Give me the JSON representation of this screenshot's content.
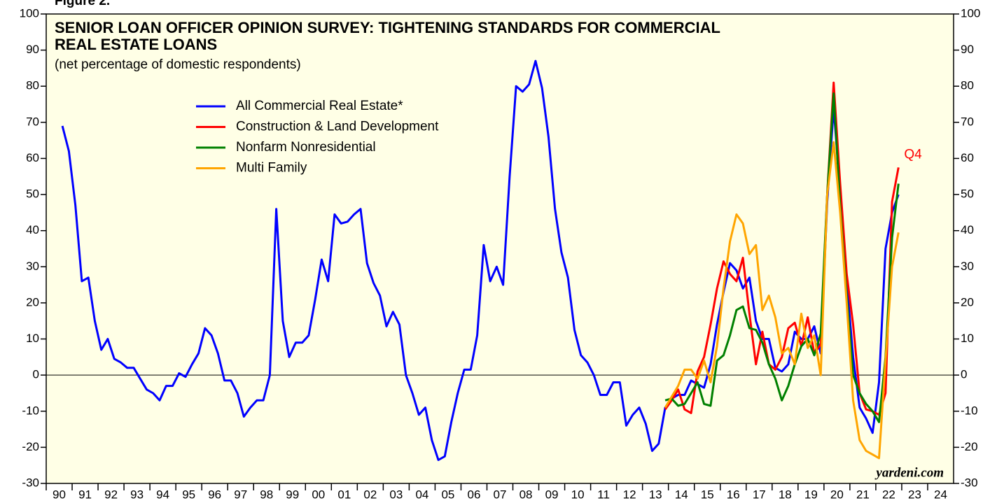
{
  "chart_data": {
    "type": "line",
    "figure_label": "Figure 2.",
    "title": [
      "SENIOR LOAN OFFICER OPINION SURVEY: TIGHTENING STANDARDS FOR COMMERCIAL",
      "REAL ESTATE LOANS"
    ],
    "subtitle": "(net percentage of domestic respondents)",
    "annotation": "Q4",
    "source": "yardeni.com",
    "xlim": [
      1990,
      2025
    ],
    "xticks": [
      {
        "value": 1990,
        "label": "90"
      },
      {
        "value": 1991,
        "label": "91"
      },
      {
        "value": 1992,
        "label": "92"
      },
      {
        "value": 1993,
        "label": "93"
      },
      {
        "value": 1994,
        "label": "94"
      },
      {
        "value": 1995,
        "label": "95"
      },
      {
        "value": 1996,
        "label": "96"
      },
      {
        "value": 1997,
        "label": "97"
      },
      {
        "value": 1998,
        "label": "98"
      },
      {
        "value": 1999,
        "label": "99"
      },
      {
        "value": 2000,
        "label": "00"
      },
      {
        "value": 2001,
        "label": "01"
      },
      {
        "value": 2002,
        "label": "02"
      },
      {
        "value": 2003,
        "label": "03"
      },
      {
        "value": 2004,
        "label": "04"
      },
      {
        "value": 2005,
        "label": "05"
      },
      {
        "value": 2006,
        "label": "06"
      },
      {
        "value": 2007,
        "label": "07"
      },
      {
        "value": 2008,
        "label": "08"
      },
      {
        "value": 2009,
        "label": "09"
      },
      {
        "value": 2010,
        "label": "10"
      },
      {
        "value": 2011,
        "label": "11"
      },
      {
        "value": 2012,
        "label": "12"
      },
      {
        "value": 2013,
        "label": "13"
      },
      {
        "value": 2014,
        "label": "14"
      },
      {
        "value": 2015,
        "label": "15"
      },
      {
        "value": 2016,
        "label": "16"
      },
      {
        "value": 2017,
        "label": "17"
      },
      {
        "value": 2018,
        "label": "18"
      },
      {
        "value": 2019,
        "label": "19"
      },
      {
        "value": 2020,
        "label": "20"
      },
      {
        "value": 2021,
        "label": "21"
      },
      {
        "value": 2022,
        "label": "22"
      },
      {
        "value": 2023,
        "label": "23"
      },
      {
        "value": 2024,
        "label": "24"
      }
    ],
    "ylim": [
      -30,
      100
    ],
    "yticks": [
      -30,
      -20,
      -10,
      0,
      10,
      20,
      30,
      40,
      50,
      60,
      70,
      80,
      90,
      100
    ],
    "zero_line": true,
    "legend": "upper left",
    "series": [
      {
        "name": "All Commercial Real Estate*",
        "color": "#0000ff",
        "x": [
          1990.625,
          1990.875,
          1991.125,
          1991.375,
          1991.625,
          1991.875,
          1992.125,
          1992.375,
          1992.625,
          1992.875,
          1993.125,
          1993.375,
          1993.625,
          1993.875,
          1994.125,
          1994.375,
          1994.625,
          1994.875,
          1995.125,
          1995.375,
          1995.625,
          1995.875,
          1996.125,
          1996.375,
          1996.625,
          1996.875,
          1997.125,
          1997.375,
          1997.625,
          1997.875,
          1998.125,
          1998.375,
          1998.625,
          1998.875,
          1999.125,
          1999.375,
          1999.625,
          1999.875,
          2000.125,
          2000.375,
          2000.625,
          2000.875,
          2001.125,
          2001.375,
          2001.625,
          2001.875,
          2002.125,
          2002.375,
          2002.625,
          2002.875,
          2003.125,
          2003.375,
          2003.625,
          2003.875,
          2004.125,
          2004.375,
          2004.625,
          2004.875,
          2005.125,
          2005.375,
          2005.625,
          2005.875,
          2006.125,
          2006.375,
          2006.625,
          2006.875,
          2007.125,
          2007.375,
          2007.625,
          2007.875,
          2008.125,
          2008.375,
          2008.625,
          2008.875,
          2009.125,
          2009.375,
          2009.625,
          2009.875,
          2010.125,
          2010.375,
          2010.625,
          2010.875,
          2011.125,
          2011.375,
          2011.625,
          2011.875,
          2012.125,
          2012.375,
          2012.625,
          2012.875,
          2013.125,
          2013.375,
          2013.625,
          2013.875,
          2014.125,
          2014.375,
          2014.625,
          2014.875,
          2015.125,
          2015.375,
          2015.625,
          2015.875,
          2016.125,
          2016.375,
          2016.625,
          2016.875,
          2017.125,
          2017.375,
          2017.625,
          2017.875,
          2018.125,
          2018.375,
          2018.625,
          2018.875,
          2019.125,
          2019.375,
          2019.625,
          2019.875,
          2020.125,
          2020.375,
          2020.625,
          2020.875,
          2021.125,
          2021.375,
          2021.625,
          2021.875,
          2022.125,
          2022.375,
          2022.625,
          2022.875
        ],
        "values": [
          69,
          62,
          47,
          26,
          27,
          15,
          7,
          10,
          4.5,
          3.5,
          2,
          2,
          -1,
          -4,
          -5,
          -7,
          -3,
          -3,
          0.5,
          -0.5,
          3,
          6,
          13,
          11,
          6,
          -1.5,
          -1.5,
          -5,
          -11.5,
          -9,
          -7,
          -7,
          0,
          46,
          15,
          5,
          9,
          9,
          11,
          21,
          32,
          26,
          44.5,
          42,
          42.5,
          44.5,
          46,
          31,
          25.5,
          22,
          13.5,
          17.5,
          14,
          0,
          -5,
          -11,
          -9,
          -18,
          -23.5,
          -22.5,
          -13,
          -5,
          1.5,
          1.5,
          11,
          36,
          26,
          30,
          25,
          55,
          80,
          78.5,
          80.5,
          87,
          79.5,
          66,
          46,
          34,
          27,
          12.5,
          5.5,
          3.5,
          0,
          -5.5,
          -5.5,
          -2,
          -2,
          -14,
          -11,
          -9,
          -13.5,
          -21,
          -19,
          -9,
          -6.5,
          -5.5,
          -5.5,
          -1.5,
          -2.5,
          -3.5,
          3,
          14,
          23,
          31,
          29,
          24,
          27,
          15,
          10,
          10,
          2,
          1,
          3,
          12,
          10,
          10,
          13.5,
          6,
          48,
          74,
          51,
          26,
          5,
          -9,
          -12,
          -16,
          -2,
          35,
          45,
          50
        ]
      },
      {
        "name": "Construction & Land Development",
        "color": "#ff0000",
        "x": [
          2013.875,
          2014.125,
          2014.375,
          2014.625,
          2014.875,
          2015.125,
          2015.375,
          2015.625,
          2015.875,
          2016.125,
          2016.375,
          2016.625,
          2016.875,
          2017.125,
          2017.375,
          2017.625,
          2017.875,
          2018.125,
          2018.375,
          2018.625,
          2018.875,
          2019.125,
          2019.375,
          2019.625,
          2019.875,
          2020.125,
          2020.375,
          2020.625,
          2020.875,
          2021.125,
          2021.375,
          2021.625,
          2021.875,
          2022.125,
          2022.375,
          2022.625,
          2022.875
        ],
        "values": [
          -9.5,
          -7,
          -4,
          -9.5,
          -10.5,
          1,
          5,
          14,
          24,
          31.5,
          28,
          26,
          32.5,
          17,
          3,
          12,
          3,
          1.5,
          5,
          13,
          14.5,
          8,
          16,
          6,
          8.5,
          50,
          81,
          53,
          28,
          14,
          -5,
          -9.5,
          -10,
          -11,
          -5,
          48,
          57.5
        ]
      },
      {
        "name": "Nonfarm Nonresidential",
        "color": "#008000",
        "x": [
          2013.875,
          2014.125,
          2014.375,
          2014.625,
          2014.875,
          2015.125,
          2015.375,
          2015.625,
          2015.875,
          2016.125,
          2016.375,
          2016.625,
          2016.875,
          2017.125,
          2017.375,
          2017.625,
          2017.875,
          2018.125,
          2018.375,
          2018.625,
          2018.875,
          2019.125,
          2019.375,
          2019.625,
          2019.875,
          2020.125,
          2020.375,
          2020.625,
          2020.875,
          2021.125,
          2021.375,
          2021.625,
          2021.875,
          2022.125,
          2022.375,
          2022.625,
          2022.875
        ],
        "values": [
          -7,
          -6.5,
          -8.5,
          -8,
          -5,
          -2,
          -8,
          -8.5,
          4,
          5.5,
          11,
          18,
          19,
          13,
          12.5,
          9,
          3,
          -1,
          -7,
          -3,
          3,
          8,
          10,
          5.5,
          11.5,
          50,
          78,
          47,
          22,
          0,
          -5,
          -8,
          -10,
          -13,
          5,
          38,
          53
        ]
      },
      {
        "name": "Multi Family",
        "color": "#ffa500",
        "x": [
          2013.875,
          2014.125,
          2014.375,
          2014.625,
          2014.875,
          2015.125,
          2015.375,
          2015.625,
          2015.875,
          2016.125,
          2016.375,
          2016.625,
          2016.875,
          2017.125,
          2017.375,
          2017.625,
          2017.875,
          2018.125,
          2018.375,
          2018.625,
          2018.875,
          2019.125,
          2019.375,
          2019.625,
          2019.875,
          2020.125,
          2020.375,
          2020.625,
          2020.875,
          2021.125,
          2021.375,
          2021.625,
          2021.875,
          2022.125,
          2022.375,
          2022.625,
          2022.875
        ],
        "values": [
          -9,
          -6,
          -3,
          1.5,
          1.5,
          -1,
          4,
          -2,
          8,
          24,
          37,
          44.5,
          42,
          33.5,
          36,
          18,
          22,
          16,
          6,
          7.5,
          3,
          17,
          7.5,
          11,
          0,
          50,
          64.5,
          45,
          20,
          -7,
          -18,
          -21,
          -22,
          -23,
          4,
          30,
          39.5
        ]
      }
    ]
  }
}
